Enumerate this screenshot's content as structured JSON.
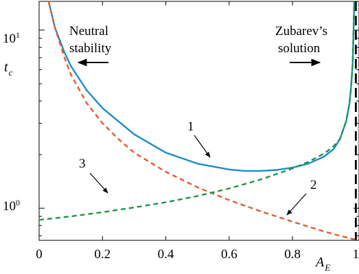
{
  "chart_data": {
    "type": "line",
    "xlabel": "A",
    "xlabel_sub": "E",
    "ylabel": "t",
    "ylabel_sub": "c",
    "xlim": [
      0,
      1.01
    ],
    "ylim": [
      0.66,
      14.5
    ],
    "y_scale": "log",
    "grid": false,
    "x_ticks": [
      0,
      0.2,
      0.4,
      0.6,
      0.8,
      1
    ],
    "x_tick_labels": [
      "0",
      "0.2",
      "0.4",
      "0.6",
      "0.8",
      "1"
    ],
    "y_major_ticks": [
      {
        "value": 1,
        "base": "10",
        "exp": "0"
      },
      {
        "value": 10,
        "base": "10",
        "exp": "1"
      }
    ],
    "y_minor_ticks": [
      0.7,
      0.8,
      0.9,
      2,
      3,
      4,
      5,
      6,
      7,
      8,
      9
    ],
    "series": [
      {
        "id": "1",
        "style": "solid",
        "color": "#1a8ccc",
        "x": [
          0.03,
          0.05,
          0.08,
          0.1,
          0.15,
          0.2,
          0.3,
          0.4,
          0.5,
          0.6,
          0.65,
          0.7,
          0.75,
          0.8,
          0.85,
          0.9,
          0.93,
          0.95,
          0.97,
          0.98,
          0.985,
          0.99,
          0.995
        ],
        "y": [
          14.5,
          10.3,
          7.5,
          6.3,
          4.6,
          3.65,
          2.6,
          2.05,
          1.78,
          1.65,
          1.62,
          1.62,
          1.64,
          1.69,
          1.78,
          1.95,
          2.15,
          2.45,
          3.1,
          3.9,
          4.8,
          6.5,
          14.5
        ]
      },
      {
        "id": "2",
        "style": "dashed",
        "color": "#e8582d",
        "x": [
          0.03,
          0.05,
          0.08,
          0.1,
          0.15,
          0.2,
          0.25,
          0.3,
          0.4,
          0.5,
          0.6,
          0.7,
          0.8,
          0.9,
          0.95,
          1.0
        ],
        "y": [
          14.5,
          10.3,
          7.0,
          5.65,
          3.9,
          3.0,
          2.45,
          2.05,
          1.6,
          1.31,
          1.11,
          0.96,
          0.84,
          0.74,
          0.7,
          0.665
        ]
      },
      {
        "id": "3",
        "style": "dashed",
        "color": "#1e9447",
        "x": [
          0.0,
          0.1,
          0.2,
          0.3,
          0.4,
          0.5,
          0.6,
          0.7,
          0.8,
          0.85,
          0.9,
          0.93,
          0.95,
          0.97,
          0.98,
          0.985,
          0.99,
          0.995
        ],
        "y": [
          0.86,
          0.9,
          0.95,
          1.01,
          1.08,
          1.17,
          1.29,
          1.45,
          1.67,
          1.82,
          2.03,
          2.23,
          2.45,
          3.1,
          3.9,
          4.8,
          6.5,
          14.5
        ]
      }
    ],
    "asymptote": {
      "x": 1,
      "style": "dashed",
      "color": "#000000"
    },
    "annotations": {
      "neutral": {
        "line1": "Neutral",
        "line2": "stability"
      },
      "zubarev": {
        "line1": "Zubarev’s",
        "line2": "solution"
      },
      "label1": "1",
      "label2": "2",
      "label3": "3"
    }
  }
}
